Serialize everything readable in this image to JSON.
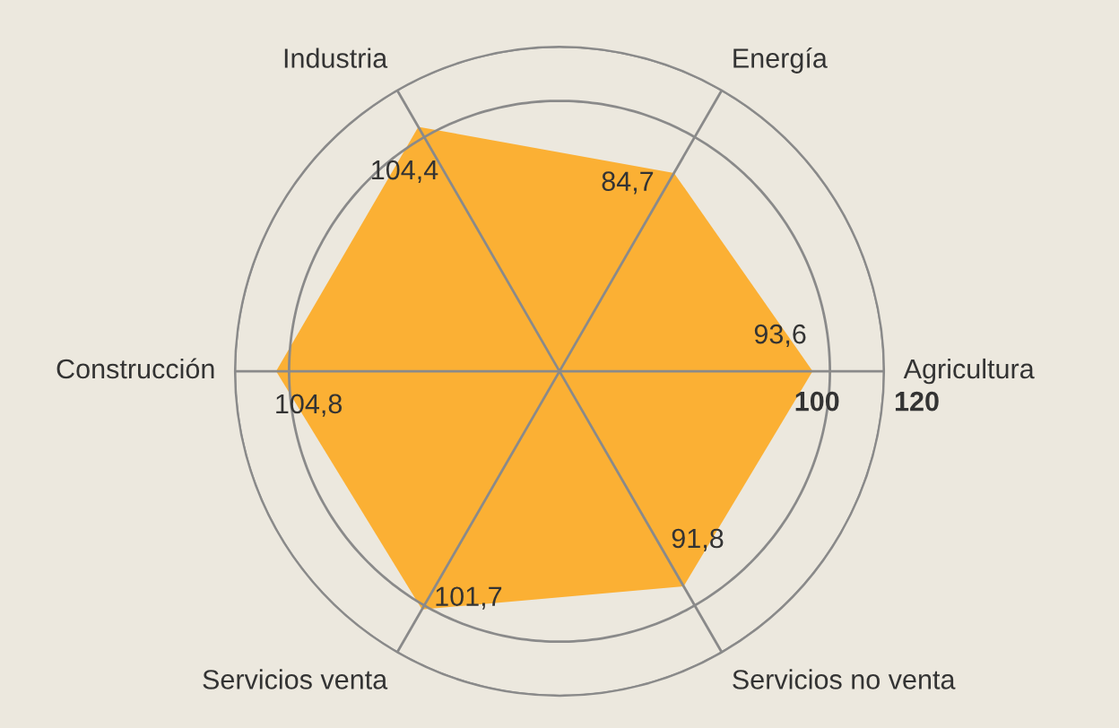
{
  "chart_data": {
    "type": "radar",
    "categories": [
      "Energía",
      "Agricultura",
      "Servicios no venta",
      "Servicios venta",
      "Construcción",
      "Industria"
    ],
    "series": [
      {
        "color": "#fbb034",
        "values": [
          84.7,
          93.6,
          91.8,
          101.7,
          104.8,
          104.4
        ],
        "value_labels": [
          "84,7",
          "93,6",
          "91,8",
          "101,7",
          "104,8",
          "104,4"
        ]
      }
    ],
    "ylim": [
      0,
      120
    ],
    "yticks": [
      100,
      120
    ],
    "grid": true,
    "legend": false
  }
}
